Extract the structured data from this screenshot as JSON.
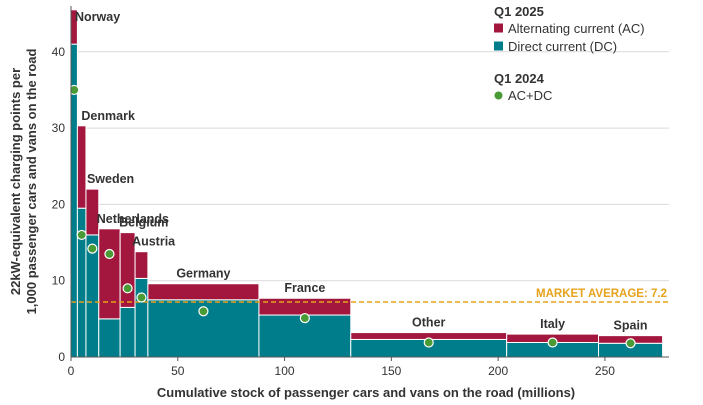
{
  "chart_data": {
    "type": "bar",
    "subtype": "variable-width stacked bar (marimekko)",
    "xlabel": "Cumulative stock of passenger cars and vans on the road (millions)",
    "ylabel_lines": [
      "22kW-equivalent charging points per",
      "1,000 passenger cars and vans on the road"
    ],
    "xlim": [
      0,
      280
    ],
    "ylim": [
      0,
      46
    ],
    "xticks": [
      0,
      50,
      100,
      150,
      200,
      250
    ],
    "yticks": [
      0,
      10,
      20,
      30,
      40
    ],
    "grid": "horizontal",
    "legend": {
      "placement": "top-right",
      "groups": [
        {
          "title": "Q1 2025",
          "items": [
            {
              "label": "Alternating current (AC)",
              "color": "#a3173f",
              "marker": "square"
            },
            {
              "label": "Direct current (DC)",
              "color": "#007d8a",
              "marker": "square"
            }
          ]
        },
        {
          "title": "Q1 2024",
          "items": [
            {
              "label": "AC+DC",
              "color": "#4a9a36",
              "marker": "circle"
            }
          ]
        }
      ]
    },
    "colors": {
      "ac": "#a3173f",
      "dc": "#007d8a",
      "q1_2024": "#4a9a36",
      "average": "#e6a21b",
      "grid": "#d9d9d9",
      "bar_divider": "#ffffff"
    },
    "market_average": {
      "label": "MARKET AVERAGE: 7.2",
      "value": 7.2
    },
    "series": [
      {
        "name": "Alternating current (AC)",
        "key": "ac"
      },
      {
        "name": "Direct current (DC)",
        "key": "dc"
      }
    ],
    "categories": [
      {
        "name": "Norway",
        "x_start": 0,
        "x_end": 3,
        "dc": 41,
        "ac": 4.5,
        "q1_2024": 35
      },
      {
        "name": "Denmark",
        "x_start": 3,
        "x_end": 7,
        "dc": 19.5,
        "ac": 10.8,
        "q1_2024": 16
      },
      {
        "name": "Sweden",
        "x_start": 7,
        "x_end": 13,
        "dc": 16,
        "ac": 6,
        "q1_2024": 14.2
      },
      {
        "name": "Netherlands",
        "x_start": 13,
        "x_end": 23,
        "dc": 5,
        "ac": 11.8,
        "q1_2024": 13.5
      },
      {
        "name": "Belgium",
        "x_start": 23,
        "x_end": 30,
        "dc": 6.5,
        "ac": 9.8,
        "q1_2024": 9
      },
      {
        "name": "Austria",
        "x_start": 30,
        "x_end": 36,
        "dc": 10.3,
        "ac": 3.5,
        "q1_2024": 7.8
      },
      {
        "name": "Germany",
        "x_start": 36,
        "x_end": 88,
        "dc": 7.5,
        "ac": 2.1,
        "q1_2024": 6
      },
      {
        "name": "France",
        "x_start": 88,
        "x_end": 131,
        "dc": 5.5,
        "ac": 2.2,
        "q1_2024": 5.1
      },
      {
        "name": "Other",
        "x_start": 131,
        "x_end": 204,
        "dc": 2.3,
        "ac": 0.9,
        "q1_2024": 1.9
      },
      {
        "name": "Italy",
        "x_start": 204,
        "x_end": 247,
        "dc": 1.9,
        "ac": 1.1,
        "q1_2024": 1.9
      },
      {
        "name": "Spain",
        "x_start": 247,
        "x_end": 277,
        "dc": 1.8,
        "ac": 1.0,
        "q1_2024": 1.8
      }
    ]
  }
}
